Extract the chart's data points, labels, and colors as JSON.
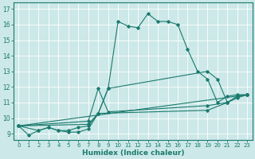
{
  "bg_color": "#cce8e8",
  "grid_color": "#ffffff",
  "line_color": "#1a7a6e",
  "xlabel": "Humidex (Indice chaleur)",
  "xlim": [
    -0.5,
    23.5
  ],
  "ylim": [
    8.6,
    17.4
  ],
  "yticks": [
    9,
    10,
    11,
    12,
    13,
    14,
    15,
    16,
    17
  ],
  "xticks": [
    0,
    1,
    2,
    3,
    4,
    5,
    6,
    7,
    8,
    9,
    10,
    11,
    12,
    13,
    14,
    15,
    16,
    17,
    18,
    19,
    20,
    21,
    22,
    23
  ],
  "series1_x": [
    0,
    1,
    2,
    3,
    4,
    5,
    6,
    7,
    8,
    9,
    10,
    11,
    12,
    13,
    14,
    15,
    16,
    17,
    18,
    19,
    20,
    21,
    22,
    23
  ],
  "series1_y": [
    9.5,
    8.9,
    9.2,
    9.4,
    9.2,
    9.2,
    9.4,
    9.5,
    10.3,
    11.9,
    16.2,
    15.9,
    15.8,
    16.7,
    16.2,
    16.2,
    16.0,
    14.4,
    13.0,
    12.5,
    11.0,
    11.4,
    11.5,
    11.5
  ],
  "series2_x": [
    0,
    2,
    3,
    4,
    5,
    6,
    7,
    8,
    9,
    19,
    20,
    21,
    22,
    23
  ],
  "series2_y": [
    9.5,
    9.2,
    9.4,
    9.2,
    9.1,
    9.1,
    9.3,
    10.3,
    11.9,
    13.0,
    12.5,
    11.0,
    11.4,
    11.5
  ],
  "series3_x": [
    0,
    7,
    8,
    9,
    19,
    21,
    22,
    23
  ],
  "series3_y": [
    9.5,
    9.8,
    11.9,
    10.4,
    10.8,
    11.0,
    11.4,
    11.5
  ],
  "series4_x": [
    0,
    7,
    8,
    19,
    21,
    22,
    23
  ],
  "series4_y": [
    9.5,
    9.6,
    10.3,
    10.5,
    11.0,
    11.3,
    11.5
  ],
  "series5_x": [
    0,
    23
  ],
  "series5_y": [
    9.5,
    11.5
  ]
}
